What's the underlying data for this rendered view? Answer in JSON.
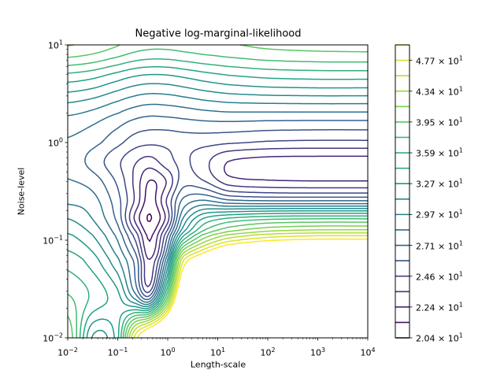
{
  "figure": {
    "title": "Negative log-marginal-likelihood",
    "background": "#ffffff"
  },
  "axes": {
    "x": {
      "label": "Length-scale",
      "scale": "log",
      "base": "10",
      "tick_exponents": [
        "−2",
        "−1",
        "0",
        "1",
        "2",
        "3",
        "4"
      ],
      "range_log10": [
        -2,
        4
      ]
    },
    "y": {
      "label": "Noise-level",
      "scale": "log",
      "base": "10",
      "tick_exponents": [
        "−2",
        "−1",
        "0",
        "1"
      ],
      "range_log10": [
        -2,
        1
      ]
    }
  },
  "colorbar": {
    "tick_mantissas": [
      "2.04",
      "2.24",
      "2.46",
      "2.71",
      "2.97",
      "3.27",
      "3.59",
      "3.95",
      "4.34",
      "4.77"
    ],
    "times_base": " × 10",
    "exponent": "1",
    "labeled_level_indices": [
      0,
      2,
      4,
      6,
      8,
      10,
      12,
      14,
      16,
      18
    ]
  },
  "chart_data": {
    "type": "contour",
    "title": "Negative log-marginal-likelihood",
    "xlabel": "Length-scale",
    "ylabel": "Noise-level",
    "x_scale": "log",
    "y_scale": "log",
    "x_range": [
      0.01,
      10000
    ],
    "y_range": [
      0.01,
      10
    ],
    "norm": "log",
    "colormap": "viridis",
    "colormap_anchors": [
      [
        0.0,
        "#440154"
      ],
      [
        0.14,
        "#46327e"
      ],
      [
        0.29,
        "#365c8d"
      ],
      [
        0.43,
        "#277f8e"
      ],
      [
        0.57,
        "#1fa187"
      ],
      [
        0.71,
        "#4ac16d"
      ],
      [
        0.86,
        "#a0da39"
      ],
      [
        1.0,
        "#fde725"
      ]
    ],
    "levels": [
      20.4,
      21.39,
      22.42,
      23.5,
      24.64,
      25.83,
      27.07,
      28.38,
      29.75,
      31.19,
      32.69,
      34.27,
      35.93,
      37.66,
      39.48,
      41.39,
      43.39,
      45.48,
      47.68,
      49.98
    ],
    "minimum": {
      "length_scale": 0.45,
      "noise_level": 0.165,
      "value": 20.35
    },
    "field": {
      "log10_length_scale": [
        -2,
        -1.5,
        -1,
        -0.65,
        -0.35,
        0,
        0.3,
        0.7,
        1.2,
        2,
        3,
        4
      ],
      "log10_noise_level": [
        -2,
        -1.6,
        -1.2,
        -0.95,
        -0.78,
        -0.6,
        -0.4,
        -0.2,
        0,
        0.3,
        0.65,
        1
      ],
      "nlml": [
        [
          41.0,
          31.0,
          33.8,
          48.5,
          56.5,
          65.0,
          85.0,
          118.0,
          158.0,
          198.0,
          228.0,
          248.0
        ],
        [
          38.0,
          35.5,
          33.3,
          29.6,
          27.2,
          40.5,
          61.0,
          79.0,
          91.0,
          97.0,
          99.0,
          99.0
        ],
        [
          35.2,
          33.4,
          30.0,
          26.6,
          22.5,
          29.8,
          47.0,
          55.0,
          63.0,
          67.0,
          68.0,
          68.0
        ],
        [
          32.9,
          31.2,
          28.0,
          24.2,
          21.2,
          25.8,
          33.8,
          39.8,
          43.8,
          46.4,
          47.4,
          47.4
        ],
        [
          31.2,
          29.7,
          26.7,
          22.2,
          20.35,
          23.1,
          29.8,
          34.3,
          36.2,
          37.3,
          37.6,
          37.6
        ],
        [
          29.5,
          28.9,
          26.3,
          23.3,
          20.9,
          23.8,
          27.4,
          28.6,
          27.5,
          27.2,
          27.2,
          27.2
        ],
        [
          28.5,
          27.8,
          25.6,
          23.2,
          21.3,
          22.6,
          25.3,
          24.8,
          23.0,
          22.6,
          22.5,
          22.5
        ],
        [
          27.9,
          26.6,
          24.9,
          23.6,
          23.0,
          24.2,
          24.85,
          23.9,
          22.4,
          22.0,
          21.95,
          21.95
        ],
        [
          28.2,
          27.5,
          26.2,
          25.2,
          24.9,
          25.0,
          25.2,
          25.1,
          24.8,
          24.5,
          24.4,
          24.4
        ],
        [
          30.0,
          29.4,
          28.4,
          27.7,
          27.4,
          27.5,
          27.7,
          28.0,
          28.2,
          28.2,
          28.2,
          28.2
        ],
        [
          34.8,
          34.2,
          33.0,
          32.2,
          31.9,
          32.0,
          32.4,
          33.0,
          33.6,
          34.1,
          34.3,
          34.3
        ],
        [
          41.5,
          40.8,
          39.6,
          38.6,
          38.2,
          38.2,
          38.5,
          38.9,
          39.3,
          39.9,
          40.2,
          40.3
        ]
      ]
    }
  }
}
